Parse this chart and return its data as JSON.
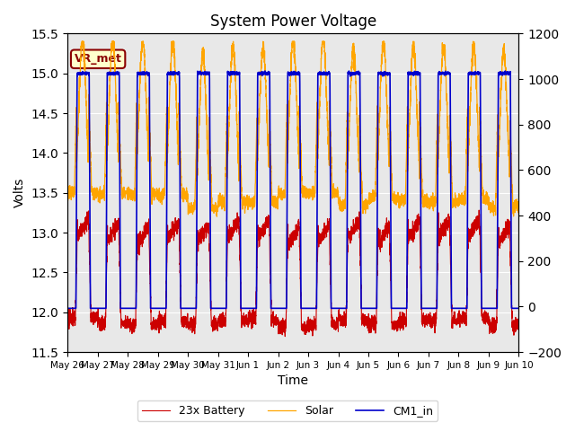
{
  "title": "System Power Voltage",
  "xlabel": "Time",
  "ylabel_left": "Volts",
  "ylim_left": [
    11.5,
    15.5
  ],
  "ylim_right": [
    -200,
    1200
  ],
  "num_days": 15,
  "battery_color": "#cc0000",
  "solar_color": "#ffa500",
  "cm1_color": "#0000cc",
  "legend_labels": [
    "23x Battery",
    "Solar",
    "CM1_in"
  ],
  "vr_met_label": "VR_met",
  "xtick_labels": [
    "May 26",
    "May 27",
    "May 28",
    "May 29",
    "May 30",
    "May 31",
    "Jun 1",
    "Jun 2",
    "Jun 3",
    "Jun 4",
    "Jun 5",
    "Jun 6",
    "Jun 7",
    "Jun 8",
    "Jun 9",
    "Jun 10"
  ],
  "yticks_left": [
    11.5,
    12.0,
    12.5,
    13.0,
    13.5,
    14.0,
    14.5,
    15.0,
    15.5
  ],
  "yticks_right": [
    -200,
    0,
    200,
    400,
    600,
    800,
    1000,
    1200
  ],
  "plot_bg_color": "#e8e8e8"
}
